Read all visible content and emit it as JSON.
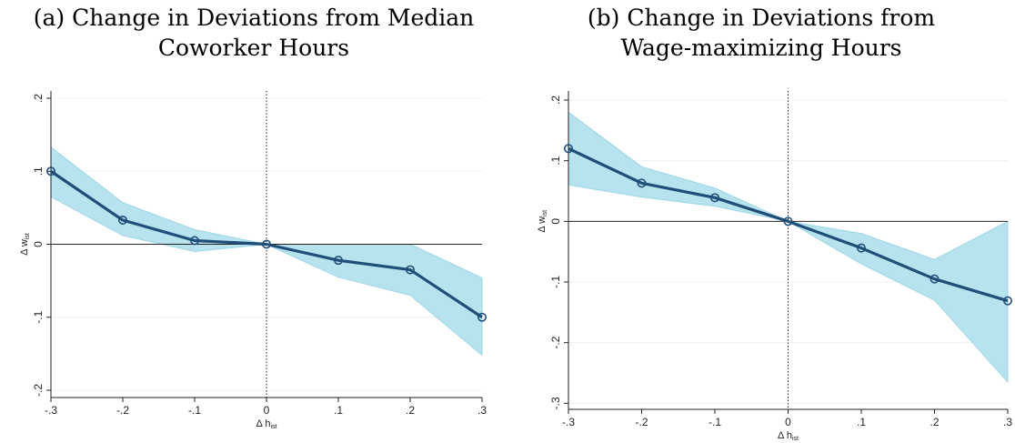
{
  "chart_data": [
    {
      "type": "line",
      "title_lines": [
        "(a) Change in Deviations from Median",
        "Coworker Hours"
      ],
      "xlabel": "Δ h",
      "xlabel_sub": "ist",
      "ylabel": "Δ w",
      "ylabel_sub": "ist",
      "x": [
        -0.3,
        -0.2,
        -0.1,
        0,
        0.1,
        0.2,
        0.3
      ],
      "x_ticks": [
        -0.3,
        -0.2,
        -0.1,
        0,
        0.1,
        0.2,
        0.3
      ],
      "x_tick_labels": [
        "-.3",
        "-.2",
        "-.1",
        "0",
        ".1",
        ".2",
        ".3"
      ],
      "y_ticks": [
        -0.2,
        -0.1,
        0,
        0.1,
        0.2
      ],
      "y_tick_labels": [
        "-.2",
        "-.1",
        "0",
        ".1",
        ".2"
      ],
      "xlim": [
        -0.3,
        0.3
      ],
      "ylim": [
        -0.21,
        0.21
      ],
      "series": [
        {
          "values": [
            0.1,
            0.033,
            0.005,
            0,
            -0.022,
            -0.035,
            -0.1
          ],
          "ci_lower": [
            0.065,
            0.012,
            -0.01,
            0,
            -0.045,
            -0.07,
            -0.152
          ],
          "ci_upper": [
            0.133,
            0.057,
            0.02,
            0,
            0,
            0,
            -0.046
          ]
        }
      ],
      "grid": true,
      "colors": {
        "line": "#1f4e79",
        "band": "#b7e3ef",
        "band_edge": "#9fd6e6",
        "grid": "#eaf2f3"
      }
    },
    {
      "type": "line",
      "title_lines": [
        "(b) Change in Deviations from",
        "Wage-maximizing Hours"
      ],
      "xlabel": "Δ h",
      "xlabel_sub": "ist",
      "ylabel": "Δ w",
      "ylabel_sub": "ist",
      "x": [
        -0.3,
        -0.2,
        -0.1,
        0,
        0.1,
        0.2,
        0.3
      ],
      "x_ticks": [
        -0.3,
        -0.2,
        -0.1,
        0,
        0.1,
        0.2,
        0.3
      ],
      "x_tick_labels": [
        "-.3",
        "-.2",
        "-.1",
        "0",
        ".1",
        ".2",
        ".3"
      ],
      "y_ticks": [
        -0.3,
        -0.2,
        -0.1,
        0,
        0.1,
        0.2
      ],
      "y_tick_labels": [
        "-.3",
        "-.2",
        "-.1",
        "0",
        ".1",
        ".2"
      ],
      "xlim": [
        -0.3,
        0.3
      ],
      "ylim": [
        -0.31,
        0.215
      ],
      "series": [
        {
          "values": [
            0.12,
            0.063,
            0.039,
            0,
            -0.044,
            -0.095,
            -0.131
          ],
          "ci_lower": [
            0.06,
            0.04,
            0.025,
            0,
            -0.07,
            -0.13,
            -0.265
          ],
          "ci_upper": [
            0.18,
            0.09,
            0.055,
            0,
            -0.02,
            -0.063,
            0
          ]
        }
      ],
      "grid": true,
      "colors": {
        "line": "#1f4e79",
        "band": "#b7e3ef",
        "band_edge": "#9fd6e6",
        "grid": "#eaf2f3"
      }
    }
  ]
}
